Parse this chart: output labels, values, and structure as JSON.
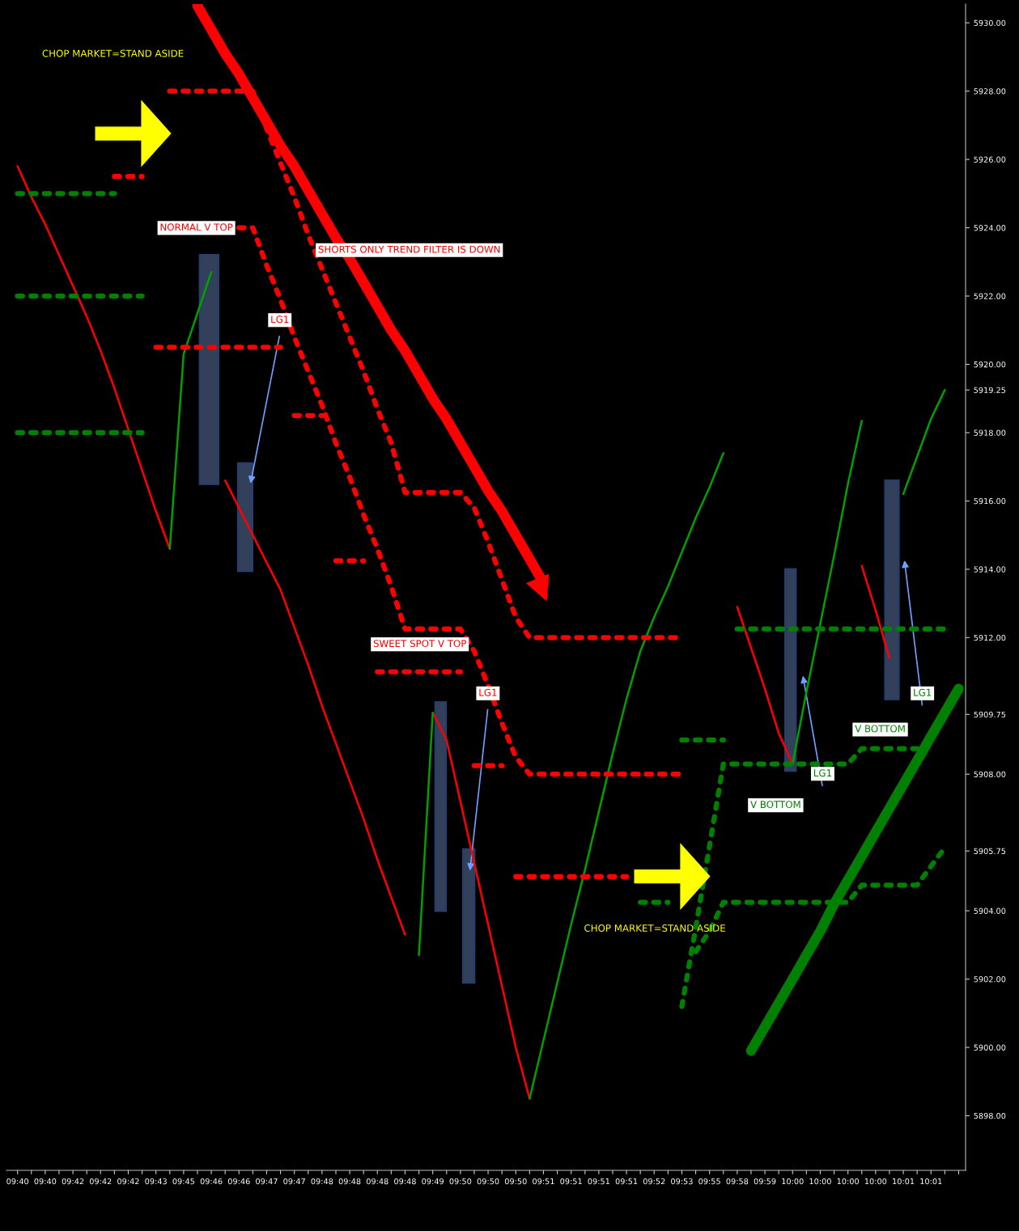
{
  "chart_data": {
    "type": "line",
    "categories": [
      "09:40",
      null,
      "09:40",
      null,
      "09:42",
      null,
      "09:42",
      null,
      "09:42",
      null,
      "09:43",
      null,
      "09:45",
      null,
      "09:46",
      null,
      "09:46",
      null,
      "09:47",
      null,
      "09:47",
      null,
      "09:48",
      null,
      "09:48",
      null,
      "09:48",
      null,
      "09:48",
      null,
      "09:49",
      null,
      "09:50",
      null,
      "09:50",
      null,
      "09:50",
      null,
      "09:51",
      null,
      "09:51",
      null,
      "09:51",
      null,
      "09:51",
      null,
      "09:52",
      null,
      "09:53",
      null,
      "09:55",
      null,
      "09:58",
      null,
      "09:59",
      null,
      "10:00",
      null,
      "10:00",
      null,
      "10:00",
      null,
      "10:00",
      null,
      "10:01",
      null,
      "10:01",
      null,
      null
    ],
    "ylim": [
      5896.4,
      5930.55
    ],
    "yticks": [
      {
        "value": 5898,
        "label": "5898.00"
      },
      {
        "value": 5900,
        "label": "5900.00"
      },
      {
        "value": 5902,
        "label": "5902.00"
      },
      {
        "value": 5904,
        "label": "5904.00"
      },
      {
        "value": 5905.75,
        "label": "5905.75"
      },
      {
        "value": 5908,
        "label": "5908.00"
      },
      {
        "value": 5909.75,
        "label": "5909.75"
      },
      {
        "value": 5912,
        "label": "5912.00"
      },
      {
        "value": 5914,
        "label": "5914.00"
      },
      {
        "value": 5916,
        "label": "5916.00"
      },
      {
        "value": 5918,
        "label": "5918.00"
      },
      {
        "value": 5919.25,
        "label": "5919.25"
      },
      {
        "value": 5920,
        "label": "5920.00"
      },
      {
        "value": 5922,
        "label": "5922.00"
      },
      {
        "value": 5924,
        "label": "5924.00"
      },
      {
        "value": 5926,
        "label": "5926.00"
      },
      {
        "value": 5928,
        "label": "5928.00"
      },
      {
        "value": 5930,
        "label": "5930.00"
      }
    ],
    "grid": false,
    "legend": false,
    "line_style": "solid",
    "marker": "none",
    "series": [
      {
        "color": "#ff0000",
        "values": [
          5925.8,
          5924.9,
          5924.1,
          5923.2,
          5922.3,
          5921.4,
          5920.4,
          5919.3,
          5918.1,
          5916.9,
          5915.7,
          5914.6,
          null,
          null,
          null,
          5916.6,
          5915.8,
          5915.0,
          5914.2,
          5913.4,
          5912.3,
          5911.2,
          5910.0,
          5908.9,
          5907.8,
          5906.7,
          5905.5,
          5904.4,
          5903.3,
          null,
          5909.8,
          5909.0,
          5907.2,
          5905.4,
          5903.6,
          5901.8,
          5900.0,
          5898.5,
          null,
          null,
          null,
          null,
          null,
          null,
          null,
          null,
          null,
          null,
          null,
          null,
          null,
          null,
          5912.9,
          5911.7,
          5910.5,
          5909.2,
          5908.3,
          null,
          null,
          null,
          null,
          5914.1,
          5912.8,
          5911.4,
          null,
          null,
          null,
          null,
          null
        ]
      },
      {
        "color": "#00a000",
        "values": [
          null,
          null,
          null,
          null,
          null,
          null,
          null,
          null,
          null,
          null,
          null,
          5914.6,
          5920.3,
          5921.5,
          5922.7,
          null,
          null,
          null,
          null,
          null,
          null,
          null,
          null,
          null,
          null,
          null,
          null,
          null,
          null,
          5902.7,
          5909.8,
          null,
          null,
          null,
          null,
          null,
          null,
          5898.5,
          5900.2,
          5901.9,
          5903.6,
          5905.2,
          5906.9,
          5908.6,
          5910.2,
          5911.6,
          5912.6,
          5913.5,
          5914.5,
          5915.5,
          5916.4,
          5917.4,
          null,
          null,
          null,
          null,
          5908.3,
          5910.4,
          5912.4,
          5914.4,
          5916.5,
          5918.35,
          null,
          null,
          5916.2,
          5917.3,
          5918.4,
          5919.25,
          null
        ]
      },
      {
        "color": "#ff0000",
        "line_style": "dotted",
        "values": [
          null,
          null,
          null,
          null,
          null,
          null,
          null,
          5925.5,
          5925.5,
          5925.5,
          null,
          null,
          null,
          null,
          null,
          null,
          null,
          null,
          null,
          null,
          5918.5,
          5918.5,
          5918.5,
          null,
          null,
          null,
          5911.0,
          5911.0,
          5911.0,
          5911.0,
          5911.0,
          5911.0,
          5911.0,
          null,
          null,
          null,
          5905.0,
          5905.0,
          5905.0,
          5905.0,
          5905.0,
          5905.0,
          5905.0,
          5905.0,
          5905.0,
          null,
          null,
          null,
          null,
          null,
          null,
          null,
          null,
          null,
          null,
          null,
          null,
          null,
          null,
          null,
          null,
          null,
          null,
          null,
          null,
          null,
          null,
          null,
          null
        ]
      },
      {
        "color": "#ff0000",
        "line_style": "dotted",
        "values": [
          null,
          null,
          null,
          null,
          null,
          null,
          null,
          null,
          null,
          null,
          5920.5,
          5920.5,
          5920.5,
          5920.5,
          5920.5,
          5920.5,
          5920.5,
          5920.5,
          5920.5,
          5920.5,
          null,
          null,
          null,
          5914.25,
          5914.25,
          5914.25,
          null,
          null,
          null,
          null,
          null,
          null,
          null,
          5908.25,
          5908.25,
          5908.25,
          null,
          null,
          null,
          null,
          null,
          null,
          null,
          null,
          null,
          null,
          null,
          null,
          null,
          null,
          null,
          null,
          null,
          null,
          null,
          null,
          null,
          null,
          null,
          null,
          null,
          null,
          null,
          null,
          null,
          null,
          null,
          null,
          null
        ]
      },
      {
        "color": "#ff0000",
        "line_style": "dotted",
        "values": [
          null,
          null,
          null,
          null,
          null,
          null,
          null,
          null,
          null,
          null,
          null,
          5928.0,
          5928.0,
          5928.0,
          5928.0,
          5928.0,
          5928.0,
          5928.0,
          5926.9,
          5925.9,
          5924.9,
          5923.8,
          5922.8,
          5921.8,
          5920.8,
          5919.8,
          5918.7,
          5917.7,
          5916.25,
          5916.25,
          5916.25,
          5916.25,
          5916.25,
          5915.8,
          5914.8,
          5913.7,
          5912.6,
          5912.0,
          5912.0,
          5912.0,
          5912.0,
          5912.0,
          5912.0,
          5912.0,
          5912.0,
          5912.0,
          5912.0,
          5912.0,
          5912.0,
          null,
          null,
          null,
          null,
          null,
          null,
          null,
          null,
          null,
          null,
          null,
          null,
          null,
          null,
          null,
          null,
          null,
          null,
          null,
          null
        ]
      },
      {
        "color": "#ff0000",
        "line_style": "dotted",
        "values": [
          null,
          null,
          null,
          null,
          null,
          null,
          null,
          null,
          null,
          null,
          null,
          null,
          null,
          null,
          null,
          null,
          5924.0,
          5924.0,
          5922.9,
          5921.9,
          5920.8,
          5919.8,
          5918.8,
          5917.7,
          5916.7,
          5915.6,
          5914.6,
          5913.5,
          5912.25,
          5912.25,
          5912.25,
          5912.25,
          5912.25,
          5911.6,
          5910.6,
          5909.5,
          5908.5,
          5908.0,
          5908.0,
          5908.0,
          5908.0,
          5908.0,
          5908.0,
          5908.0,
          5908.0,
          5908.0,
          5908.0,
          5908.0,
          5908.0,
          null,
          null,
          null,
          null,
          null,
          null,
          null,
          null,
          null,
          null,
          null,
          null,
          null,
          null,
          null,
          null,
          null,
          null,
          null,
          null
        ]
      },
      {
        "color": "#008000",
        "line_style": "dotted",
        "values": [
          5925.0,
          5925.0,
          5925.0,
          5925.0,
          5925.0,
          5925.0,
          5925.0,
          5925.0,
          null,
          null,
          null,
          null,
          null,
          null,
          null,
          null,
          null,
          null,
          null,
          null,
          null,
          null,
          null,
          null,
          null,
          null,
          null,
          null,
          null,
          null,
          null,
          null,
          null,
          null,
          null,
          null,
          null,
          null,
          null,
          null,
          null,
          null,
          null,
          null,
          null,
          null,
          null,
          null,
          null,
          null,
          null,
          null,
          null,
          null,
          null,
          null,
          null,
          null,
          null,
          null,
          null,
          null,
          null,
          null,
          null,
          null,
          null,
          null,
          null
        ]
      },
      {
        "color": "#008000",
        "line_style": "dotted",
        "values": [
          5922.0,
          5922.0,
          5922.0,
          5922.0,
          5922.0,
          5922.0,
          5922.0,
          5922.0,
          5922.0,
          5922.0,
          null,
          null,
          null,
          null,
          null,
          null,
          null,
          null,
          null,
          null,
          null,
          null,
          null,
          null,
          null,
          null,
          null,
          null,
          null,
          null,
          null,
          null,
          null,
          null,
          null,
          null,
          null,
          null,
          null,
          null,
          null,
          null,
          null,
          null,
          null,
          null,
          null,
          null,
          null,
          null,
          null,
          null,
          null,
          null,
          null,
          null,
          null,
          null,
          null,
          null,
          null,
          null,
          null,
          null,
          null,
          null,
          null,
          null,
          null
        ]
      },
      {
        "color": "#008000",
        "line_style": "dotted",
        "values": [
          5918.0,
          5918.0,
          5918.0,
          5918.0,
          5918.0,
          5918.0,
          5918.0,
          5918.0,
          5918.0,
          5918.0,
          null,
          null,
          null,
          null,
          null,
          null,
          null,
          null,
          null,
          null,
          null,
          null,
          null,
          null,
          null,
          null,
          null,
          null,
          null,
          null,
          null,
          null,
          null,
          null,
          null,
          null,
          null,
          null,
          null,
          null,
          null,
          null,
          null,
          null,
          null,
          null,
          null,
          null,
          null,
          null,
          null,
          null,
          null,
          null,
          null,
          null,
          null,
          null,
          null,
          null,
          null,
          null,
          null,
          null,
          null,
          null,
          null,
          null,
          null
        ]
      },
      {
        "color": "#008000",
        "line_style": "dotted",
        "values": [
          null,
          null,
          null,
          null,
          null,
          null,
          null,
          null,
          null,
          null,
          null,
          null,
          null,
          null,
          null,
          null,
          null,
          null,
          null,
          null,
          null,
          null,
          null,
          null,
          null,
          null,
          null,
          null,
          null,
          null,
          null,
          null,
          null,
          null,
          null,
          null,
          null,
          null,
          null,
          null,
          null,
          null,
          null,
          null,
          null,
          5904.25,
          5904.25,
          5904.25,
          null,
          null,
          null,
          null,
          5912.25,
          5912.25,
          5912.25,
          5912.25,
          5912.25,
          5912.25,
          5912.25,
          5912.25,
          5912.25,
          5912.25,
          5912.25,
          5912.25,
          5912.25,
          5912.25,
          5912.25,
          5912.25,
          null
        ]
      },
      {
        "color": "#008000",
        "line_style": "dotted",
        "values": [
          null,
          null,
          null,
          null,
          null,
          null,
          null,
          null,
          null,
          null,
          null,
          null,
          null,
          null,
          null,
          null,
          null,
          null,
          null,
          null,
          null,
          null,
          null,
          null,
          null,
          null,
          null,
          null,
          null,
          null,
          null,
          null,
          null,
          null,
          null,
          null,
          null,
          null,
          null,
          null,
          null,
          null,
          null,
          null,
          null,
          null,
          null,
          null,
          5909.0,
          5909.0,
          5909.0,
          5909.0,
          null,
          null,
          null,
          null,
          null,
          null,
          null,
          null,
          null,
          null,
          null,
          null,
          null,
          null,
          null,
          null,
          null
        ]
      },
      {
        "color": "#008000",
        "line_style": "dotted",
        "values": [
          null,
          null,
          null,
          null,
          null,
          null,
          null,
          null,
          null,
          null,
          null,
          null,
          null,
          null,
          null,
          null,
          null,
          null,
          null,
          null,
          null,
          null,
          null,
          null,
          null,
          null,
          null,
          null,
          null,
          null,
          null,
          null,
          null,
          null,
          null,
          null,
          null,
          null,
          null,
          null,
          null,
          null,
          null,
          null,
          null,
          null,
          null,
          null,
          5901.2,
          5903.5,
          5905.9,
          5908.3,
          5908.3,
          5908.3,
          5908.3,
          5908.3,
          5908.3,
          5908.3,
          5908.3,
          5908.3,
          5908.3,
          5908.75,
          5908.75,
          5908.75,
          5908.75,
          5908.75,
          null,
          null,
          null
        ]
      },
      {
        "color": "#008000",
        "line_style": "dotted",
        "values": [
          null,
          null,
          null,
          null,
          null,
          null,
          null,
          null,
          null,
          null,
          null,
          null,
          null,
          null,
          null,
          null,
          null,
          null,
          null,
          null,
          null,
          null,
          null,
          null,
          null,
          null,
          null,
          null,
          null,
          null,
          null,
          null,
          null,
          null,
          null,
          null,
          null,
          null,
          null,
          null,
          null,
          null,
          null,
          null,
          null,
          null,
          null,
          null,
          null,
          5902.8,
          5903.4,
          5904.25,
          5904.25,
          5904.25,
          5904.25,
          5904.25,
          5904.25,
          5904.25,
          5904.25,
          5904.25,
          5904.25,
          5904.75,
          5904.75,
          5904.75,
          5904.75,
          5904.75,
          5905.3,
          5905.85,
          null
        ]
      },
      {
        "color": "#ff0000",
        "values": [
          null,
          null,
          null,
          null,
          null,
          null,
          null,
          null,
          null,
          null,
          null,
          null,
          null,
          5930.5,
          5929.8,
          5929.1,
          5928.5,
          5927.8,
          5927.1,
          5926.4,
          5925.8,
          5925.1,
          5924.4,
          5923.7,
          5923.1,
          5922.4,
          5921.7,
          5921.0,
          5920.4,
          5919.7,
          5919.0,
          5918.4,
          5917.7,
          5917.0,
          5916.3,
          5915.7,
          5915.0,
          5914.3,
          5913.6,
          null,
          null,
          null,
          null,
          null,
          null,
          null,
          null,
          null,
          null,
          null,
          null,
          null,
          null,
          null,
          null,
          null,
          null,
          null,
          null,
          null,
          null,
          null,
          null,
          null,
          null,
          null,
          null,
          null,
          null
        ]
      },
      {
        "color": "#008000",
        "values": [
          null,
          null,
          null,
          null,
          null,
          null,
          null,
          null,
          null,
          null,
          null,
          null,
          null,
          null,
          null,
          null,
          null,
          null,
          null,
          null,
          null,
          null,
          null,
          null,
          null,
          null,
          null,
          null,
          null,
          null,
          null,
          null,
          null,
          null,
          null,
          null,
          null,
          null,
          null,
          null,
          null,
          null,
          null,
          null,
          null,
          null,
          null,
          null,
          null,
          null,
          null,
          null,
          null,
          5899.9,
          5900.6,
          5901.3,
          5902.0,
          5902.7,
          5903.4,
          5904.2,
          5904.9,
          5905.6,
          5906.3,
          5907.0,
          5907.7,
          5908.4,
          5909.1,
          5909.8,
          5910.5
        ]
      }
    ],
    "annotations": [
      "CHOP MARKET=STAND ASIDE",
      "NORMAL V TOP",
      "SHORTS ONLY TREND FILTER IS DOWN",
      "LG1",
      "SWEET SPOT V TOP",
      "LG1",
      "CHOP MARKET=STAND ASIDE",
      "V BOTTOM",
      "LG1",
      "V BOTTOM",
      "LG1"
    ]
  }
}
